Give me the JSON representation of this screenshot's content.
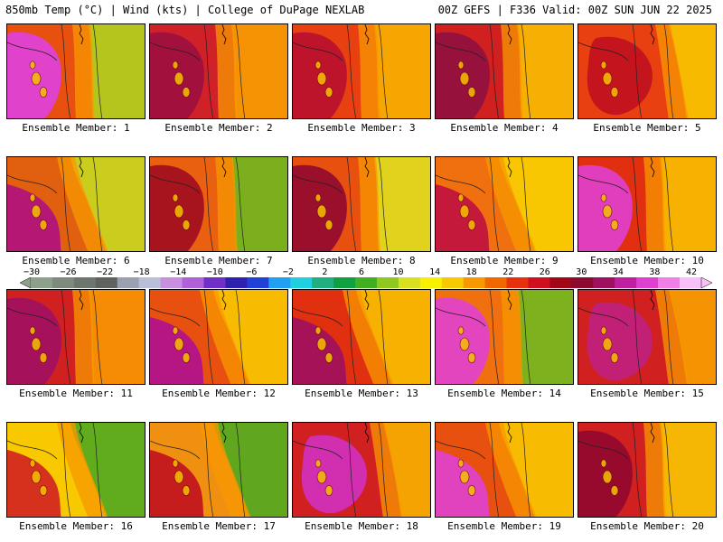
{
  "header": {
    "left": "850mb Temp (°C) | Wind (kts) | College of DuPage NEXLAB",
    "right": "00Z GEFS | F336 Valid: 00Z SUN JUN 22 2025"
  },
  "colorbar": {
    "labels": [
      "−30",
      "−26",
      "−22",
      "−18",
      "−14",
      "−10",
      "−6",
      "−2",
      "2",
      "6",
      "10",
      "14",
      "18",
      "22",
      "26",
      "30",
      "34",
      "38",
      "42"
    ],
    "colors": [
      "#8ca08c",
      "#7d8a7d",
      "#6e756e",
      "#5f625f",
      "#9aa0b0",
      "#b8bfd6",
      "#c88ee0",
      "#b060d8",
      "#7030c8",
      "#3020b0",
      "#2040d8",
      "#20a0f0",
      "#20d0e0",
      "#20b080",
      "#10a040",
      "#40b020",
      "#90c820",
      "#d8e020",
      "#f8f000",
      "#f8c800",
      "#f89800",
      "#f06800",
      "#e83010",
      "#d01020",
      "#a00818",
      "#8c0a30",
      "#a01060",
      "#c020a0",
      "#e040d0",
      "#f080e8",
      "#f8c0f8"
    ]
  },
  "members": [
    {
      "label": "Ensemble Member: 1",
      "base": "#e85010",
      "warm": "#e040e0",
      "cool": "#b0d020",
      "profile": "hot-west"
    },
    {
      "label": "Ensemble Member: 2",
      "base": "#d02028",
      "warm": "#9c1040",
      "cool": "#f8a000",
      "profile": "hot-west"
    },
    {
      "label": "Ensemble Member: 3",
      "base": "#e84010",
      "warm": "#b81030",
      "cool": "#f8b000",
      "profile": "hot-west"
    },
    {
      "label": "Ensemble Member: 4",
      "base": "#d02020",
      "warm": "#901040",
      "cool": "#f8c000",
      "profile": "hot-west"
    },
    {
      "label": "Ensemble Member: 5",
      "base": "#e84010",
      "warm": "#c01020",
      "cool": "#f8c800",
      "profile": "hot-center"
    },
    {
      "label": "Ensemble Member: 6",
      "base": "#e06010",
      "warm": "#b01080",
      "cool": "#c8d820",
      "profile": "hot-sw"
    },
    {
      "label": "Ensemble Member: 7",
      "base": "#e86010",
      "warm": "#a00c20",
      "cool": "#70b820",
      "profile": "hot-west"
    },
    {
      "label": "Ensemble Member: 8",
      "base": "#e85010",
      "warm": "#900830",
      "cool": "#e0e020",
      "profile": "hot-west"
    },
    {
      "label": "Ensemble Member: 9",
      "base": "#f07010",
      "warm": "#c01040",
      "cool": "#f8d000",
      "profile": "hot-sw"
    },
    {
      "label": "Ensemble Member: 10",
      "base": "#e03010",
      "warm": "#e040d0",
      "cool": "#f8c000",
      "profile": "hot-west"
    },
    {
      "label": "Ensemble Member: 11",
      "base": "#d02020",
      "warm": "#a01060",
      "cool": "#f89800",
      "profile": "hot-west"
    },
    {
      "label": "Ensemble Member: 12",
      "base": "#e85010",
      "warm": "#b01090",
      "cool": "#f8c800",
      "profile": "hot-sw"
    },
    {
      "label": "Ensemble Member: 13",
      "base": "#e03010",
      "warm": "#a01060",
      "cool": "#f8c000",
      "profile": "hot-sw"
    },
    {
      "label": "Ensemble Member: 14",
      "base": "#f07010",
      "warm": "#e040d0",
      "cool": "#70b820",
      "profile": "hot-west"
    },
    {
      "label": "Ensemble Member: 15",
      "base": "#d02020",
      "warm": "#c02080",
      "cool": "#f8a000",
      "profile": "hot-center"
    },
    {
      "label": "Ensemble Member: 16",
      "base": "#f8c800",
      "warm": "#d02020",
      "cool": "#50a820",
      "profile": "hot-sw"
    },
    {
      "label": "Ensemble Member: 17",
      "base": "#f09010",
      "warm": "#c01020",
      "cool": "#50a820",
      "profile": "hot-sw"
    },
    {
      "label": "Ensemble Member: 18",
      "base": "#d02020",
      "warm": "#d030c0",
      "cool": "#f8b000",
      "profile": "hot-center"
    },
    {
      "label": "Ensemble Member: 19",
      "base": "#e85010",
      "warm": "#e040d0",
      "cool": "#f8c800",
      "profile": "hot-sw"
    },
    {
      "label": "Ensemble Member: 20",
      "base": "#d02020",
      "warm": "#900830",
      "cool": "#f8c800",
      "profile": "hot-west"
    }
  ]
}
